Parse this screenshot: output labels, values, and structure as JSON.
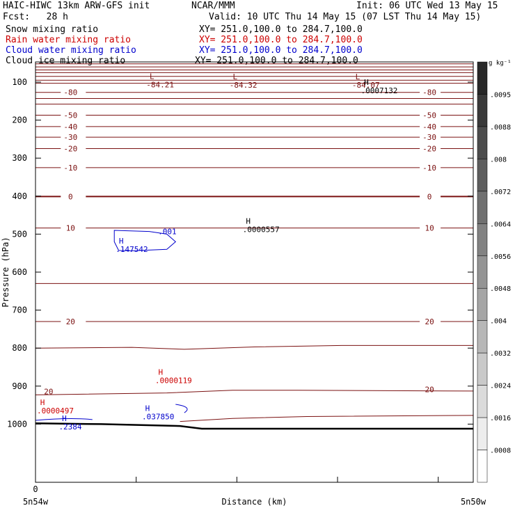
{
  "header": {
    "title": "HAIC-HIWC 13km ARW-GFS init",
    "org": "NCAR/MMM",
    "init": "Init: 06 UTC Wed 13 May 15",
    "fcst": "Fcst:   28 h",
    "valid": "Valid: 10 UTC Thu 14 May 15 (07 LST Thu 14 May 15)",
    "fields": [
      {
        "name": "Snow mixing ratio",
        "xy": "XY= 251.0,100.0 to 284.7,100.0",
        "color": "#000000"
      },
      {
        "name": "Rain water mixing ratio",
        "xy": "XY= 251.0,100.0 to 284.7,100.0",
        "color": "#cc0000"
      },
      {
        "name": "Cloud water mixing ratio",
        "xy": "XY= 251.0,100.0 to 284.7,100.0",
        "color": "#0000cc"
      },
      {
        "name": "Cloud ice mixing ratio",
        "xy": "XY= 251.0,100.0 to 284.7,100.0",
        "color": "#000000"
      }
    ]
  },
  "chart_data": {
    "type": "contour",
    "ylabel": "Pressure (hPa)",
    "xlabel": "Distance (km)",
    "y_ticks": [
      100,
      200,
      300,
      400,
      500,
      600,
      700,
      800,
      900,
      1000
    ],
    "x_tick_label": "0",
    "x_endpoints": [
      "5n54w",
      "5n50w"
    ],
    "ylim": [
      50,
      1050
    ],
    "x_range": [
      0,
      1
    ],
    "temperature_contours": {
      "color": "#7a1010",
      "levels": [
        {
          "label": "-80",
          "p": 127
        },
        {
          "label": "",
          "p": 143
        },
        {
          "label": "",
          "p": 158
        },
        {
          "label": "-50",
          "p": 187
        },
        {
          "label": "-40",
          "p": 217
        },
        {
          "label": "-30",
          "p": 245
        },
        {
          "label": "-20",
          "p": 275
        },
        {
          "label": "-10",
          "p": 325
        },
        {
          "label": "0",
          "p": 401
        },
        {
          "label": "10",
          "p": 484
        },
        {
          "label": "",
          "p": 630
        },
        {
          "label": "20",
          "p": 730
        }
      ],
      "top_lines": [
        52,
        60,
        68,
        75,
        85,
        95,
        103
      ]
    },
    "markers": [
      {
        "kind": "L",
        "value": "-84.21",
        "color": "#7a1010"
      },
      {
        "kind": "L",
        "value": "-84.32",
        "color": "#7a1010"
      },
      {
        "kind": "L",
        "value": "-84.07",
        "color": "#7a1010"
      },
      {
        "kind": "H",
        "value": ".0007132",
        "color": "#000000"
      },
      {
        "kind": "H",
        "value": ".0000557",
        "color": "#000000"
      },
      {
        "kind": "H",
        "value": ".0000119",
        "color": "#cc0000"
      },
      {
        "kind": "H",
        "value": ".0000497",
        "color": "#cc0000"
      },
      {
        "kind": "H",
        "value": ".147542",
        "color": "#0000cc"
      },
      {
        "kind": "H",
        "value": ".037850",
        "color": "#0000cc"
      },
      {
        "kind": "H",
        "value": ".2384",
        "color": "#0000cc"
      }
    ],
    "cloud_water_contour_label": ".001",
    "colorbar": {
      "unit": "g kg⁻¹",
      "labels": [
        ".0095",
        ".0088",
        ".008",
        ".0072",
        ".0064",
        ".0056",
        ".0048",
        ".004",
        ".0032",
        ".0024",
        ".0016",
        ".0008"
      ]
    }
  }
}
